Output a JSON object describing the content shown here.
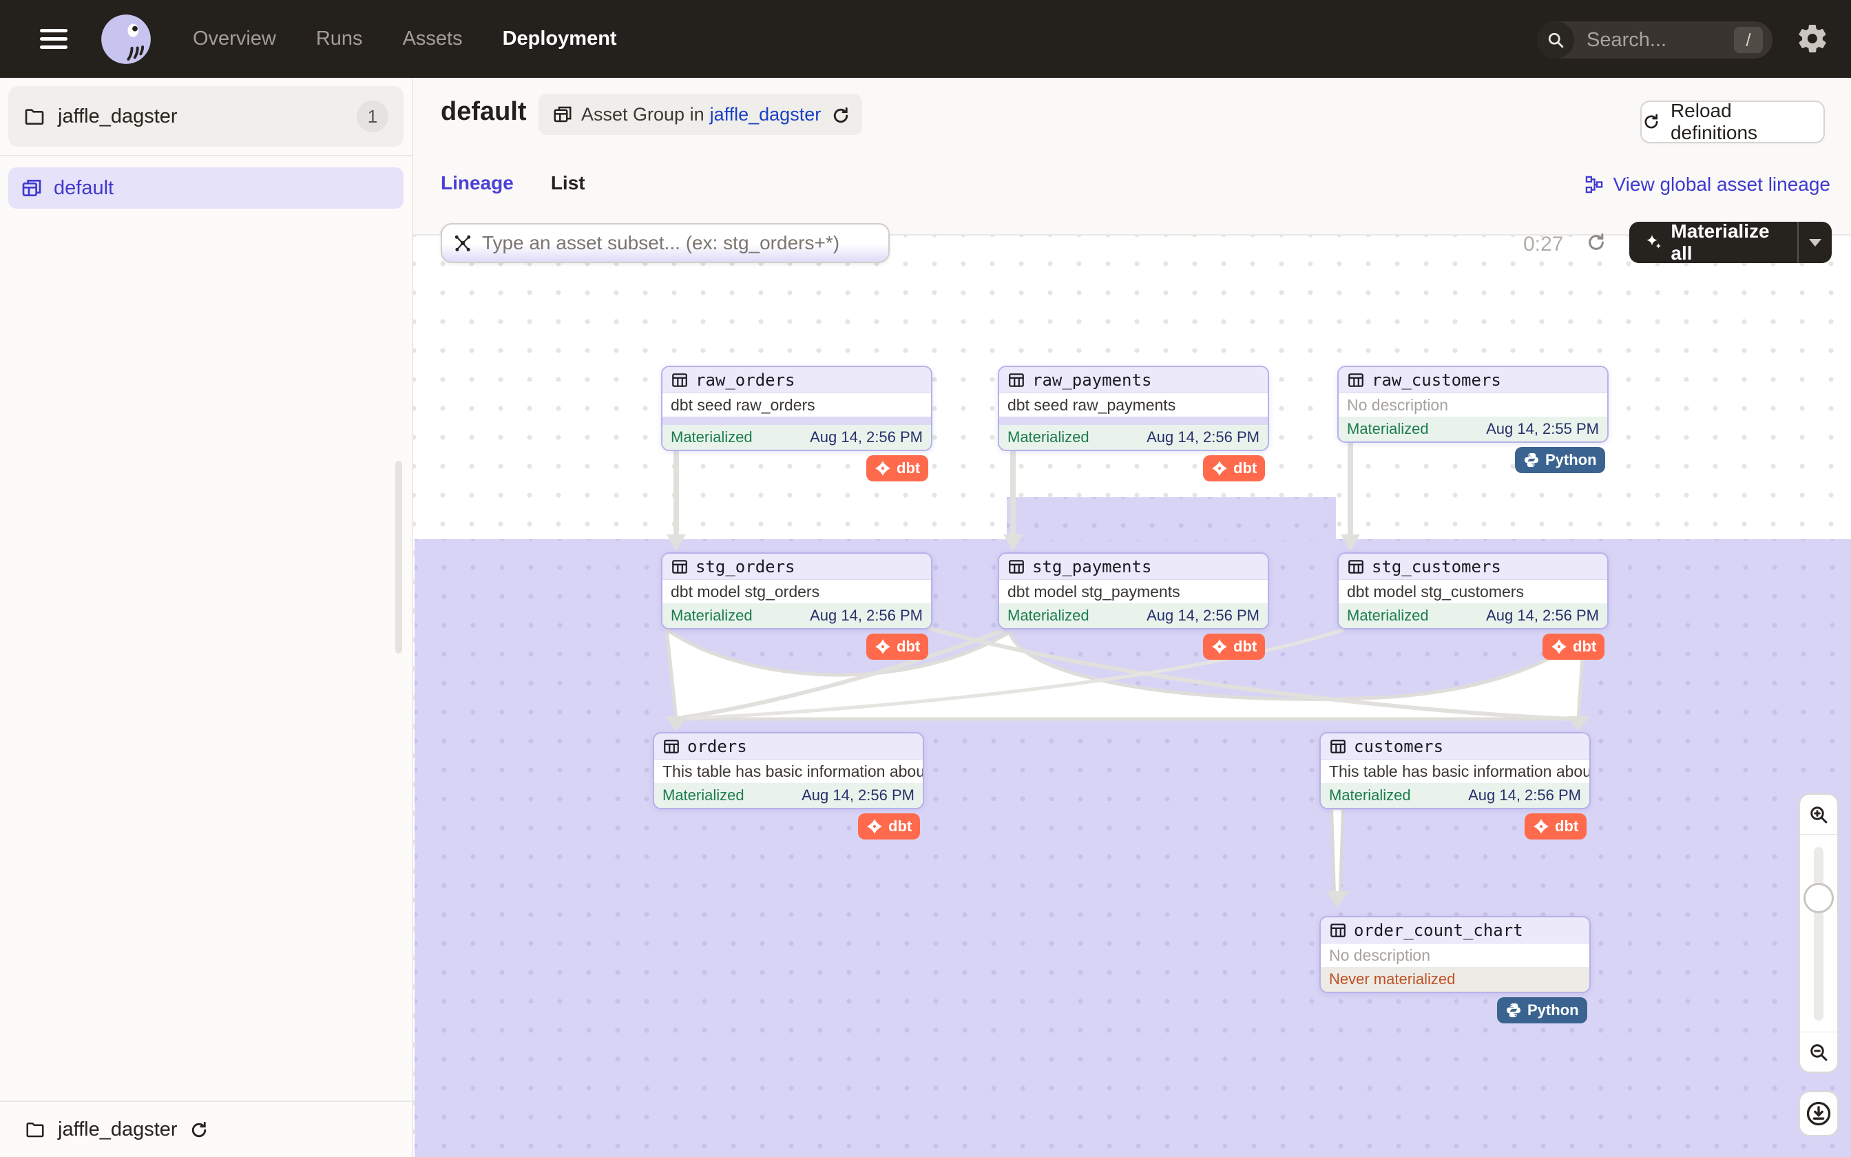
{
  "nav": {
    "items": [
      {
        "label": "Overview",
        "active": false
      },
      {
        "label": "Runs",
        "active": false
      },
      {
        "label": "Assets",
        "active": false
      },
      {
        "label": "Deployment",
        "active": true
      }
    ],
    "search_placeholder": "Search...",
    "search_shortcut": "/"
  },
  "sidebar": {
    "group": {
      "label": "jaffle_dagster",
      "count": "1"
    },
    "selected_item": {
      "label": "default"
    },
    "footer": {
      "label": "jaffle_dagster"
    }
  },
  "header": {
    "title": "default",
    "tag_prefix": "Asset Group in",
    "tag_link": "jaffle_dagster",
    "reload_button": "Reload definitions"
  },
  "tabs": {
    "lineage": "Lineage",
    "list": "List",
    "global_link": "View global asset lineage"
  },
  "toolbar": {
    "filter_placeholder": "Type an asset subset... (ex: stg_orders+*)",
    "timer": "0:27",
    "materialize_label": "Materialize all"
  },
  "graph": {
    "nodes": [
      {
        "name": "raw_orders",
        "description": "dbt seed raw_orders",
        "muted": false,
        "status": "Materialized",
        "time": "Aug 14, 2:56 PM",
        "badge": "dbt"
      },
      {
        "name": "raw_payments",
        "description": "dbt seed raw_payments",
        "muted": false,
        "status": "Materialized",
        "time": "Aug 14, 2:56 PM",
        "badge": "dbt"
      },
      {
        "name": "raw_customers",
        "description": "No description",
        "muted": true,
        "status": "Materialized",
        "time": "Aug 14, 2:55 PM",
        "badge": "Python"
      },
      {
        "name": "stg_orders",
        "description": "dbt model stg_orders",
        "muted": false,
        "status": "Materialized",
        "time": "Aug 14, 2:56 PM",
        "badge": "dbt"
      },
      {
        "name": "stg_payments",
        "description": "dbt model stg_payments",
        "muted": false,
        "status": "Materialized",
        "time": "Aug 14, 2:56 PM",
        "badge": "dbt"
      },
      {
        "name": "stg_customers",
        "description": "dbt model stg_customers",
        "muted": false,
        "status": "Materialized",
        "time": "Aug 14, 2:56 PM",
        "badge": "dbt"
      },
      {
        "name": "orders",
        "description": "This table has basic information about ...",
        "muted": false,
        "status": "Materialized",
        "time": "Aug 14, 2:56 PM",
        "badge": "dbt"
      },
      {
        "name": "customers",
        "description": "This table has basic information about ...",
        "muted": false,
        "status": "Materialized",
        "time": "Aug 14, 2:56 PM",
        "badge": "dbt"
      },
      {
        "name": "order_count_chart",
        "description": "No description",
        "muted": true,
        "status": "Never materialized",
        "time": "",
        "badge": "Python"
      }
    ]
  },
  "colors": {
    "nav_bg": "#24201C",
    "accent_indigo": "#4B40D6",
    "selection_lavender": "#D8D4F5",
    "node_border": "#B7B1E9",
    "materialized_green": "#1C7C4C",
    "never_materialized_orange": "#C05126",
    "dbt_badge": "#FF6A4C",
    "python_badge": "#3A648F",
    "link_blue": "#1A40C4"
  }
}
